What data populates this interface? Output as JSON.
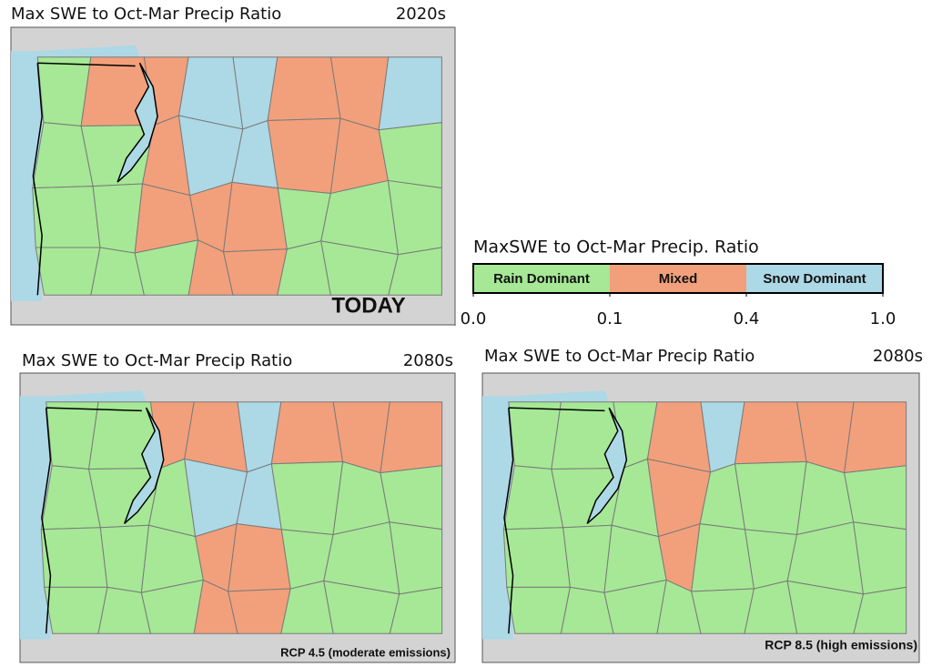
{
  "panels": [
    {
      "title": "Max SWE to Oct-Mar Precip Ratio",
      "period": "2020s",
      "label": "TODAY"
    },
    {
      "title": "Max SWE to Oct-Mar Precip Ratio",
      "period": "2080s",
      "label": "RCP 4.5 (moderate emissions)"
    },
    {
      "title": "Max SWE to Oct-Mar Precip Ratio",
      "period": "2080s",
      "label": "RCP 8.5 (high emissions)"
    }
  ],
  "legend": {
    "title": "MaxSWE to Oct-Mar Precip. Ratio",
    "classes": [
      {
        "name": "Rain Dominant",
        "color": "#a6e896"
      },
      {
        "name": "Mixed",
        "color": "#f2a07b"
      },
      {
        "name": "Snow Dominant",
        "color": "#add8e6"
      }
    ],
    "ticks": [
      {
        "value": 0,
        "label": "0.0"
      },
      0.1,
      0.4,
      {
        "value": 1,
        "label": "1.0"
      }
    ]
  }
}
